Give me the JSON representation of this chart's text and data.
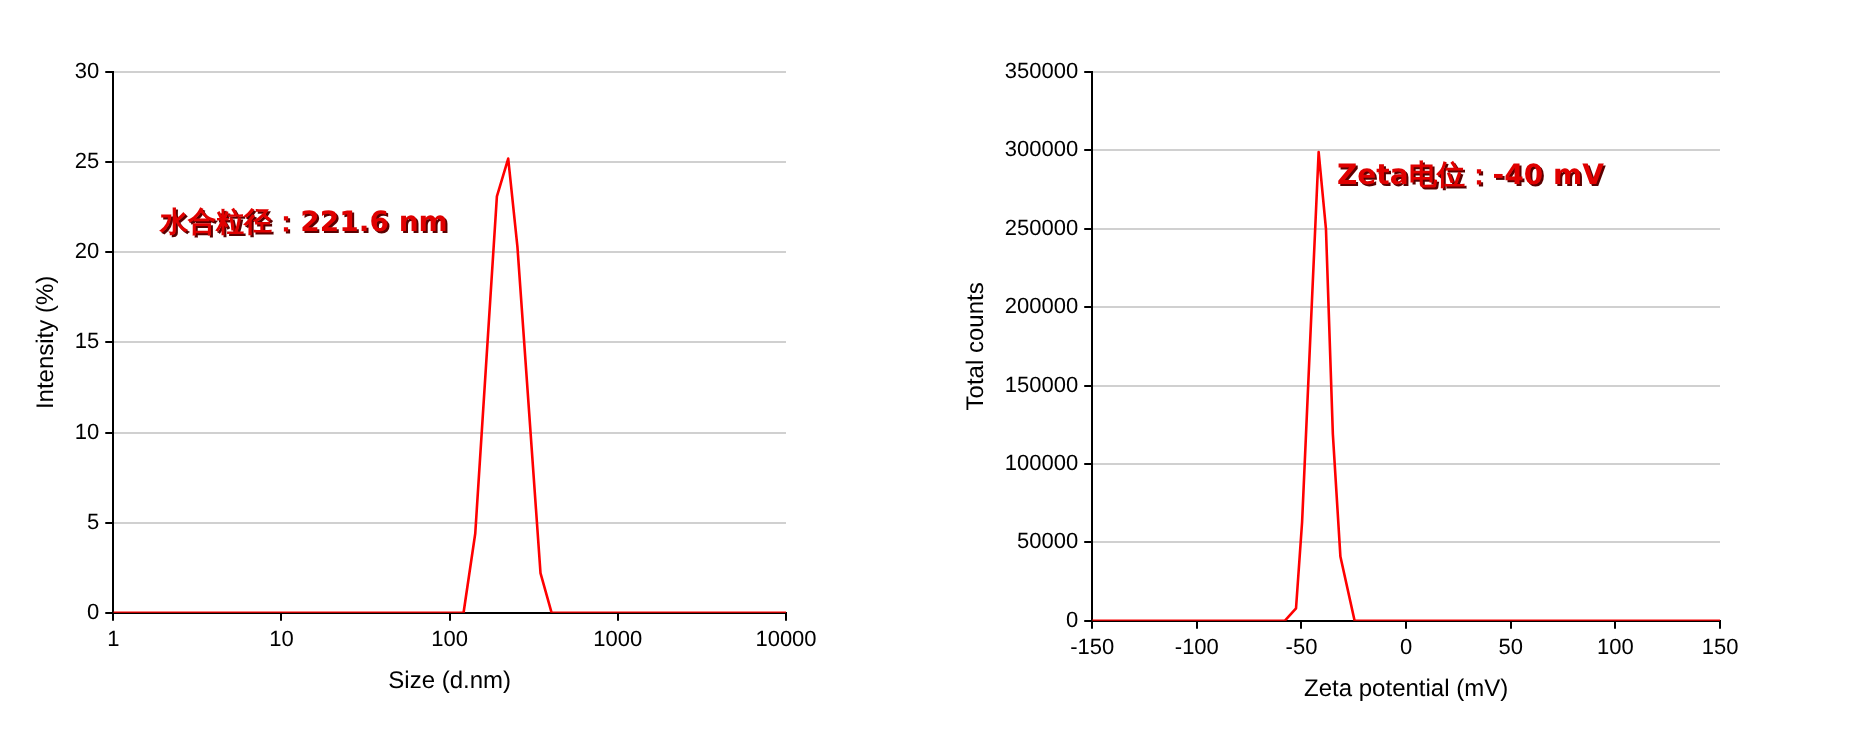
{
  "chart_data": [
    {
      "type": "line",
      "xlabel": "Size (d.nm)",
      "ylabel": "Intensity (%)",
      "log": "x",
      "xlim": [
        1,
        10000
      ],
      "xticks": [
        1,
        10,
        100,
        1000,
        10000
      ],
      "ylim": [
        0,
        30
      ],
      "yticks": [
        0,
        5,
        10,
        15,
        20,
        25,
        30
      ],
      "grid": "y",
      "legend": false,
      "marker": "none",
      "annotations": [
        "水合粒径：221.6 nm"
      ],
      "series": [
        {
          "color": "#ff0000",
          "x": [
            1,
            121,
            142,
            191,
            223,
            253,
            347,
            404,
            10000
          ],
          "values": [
            0,
            0,
            4.4,
            23.1,
            25.2,
            20.3,
            2.2,
            0,
            0
          ]
        }
      ]
    },
    {
      "type": "line",
      "xlabel": "Zeta potential (mV)",
      "ylabel": "Total counts",
      "xlim": [
        -150,
        150
      ],
      "xticks": [
        -150,
        -100,
        -50,
        0,
        50,
        100,
        150
      ],
      "ylim": [
        0,
        350000
      ],
      "yticks": [
        0,
        50000,
        100000,
        150000,
        200000,
        250000,
        300000,
        350000
      ],
      "grid": "y",
      "legend": false,
      "marker": "none",
      "annotations": [
        "Zeta电位：-40 mV"
      ],
      "series": [
        {
          "color": "#ff0000",
          "x": [
            -150,
            -58,
            -52.6,
            -49.7,
            -45.4,
            -41.8,
            -38.3,
            -35,
            -31.4,
            -24.6,
            150
          ],
          "values": [
            0,
            0,
            8000,
            63000,
            192000,
            299000,
            250000,
            119000,
            41000,
            0,
            0
          ]
        }
      ]
    }
  ]
}
